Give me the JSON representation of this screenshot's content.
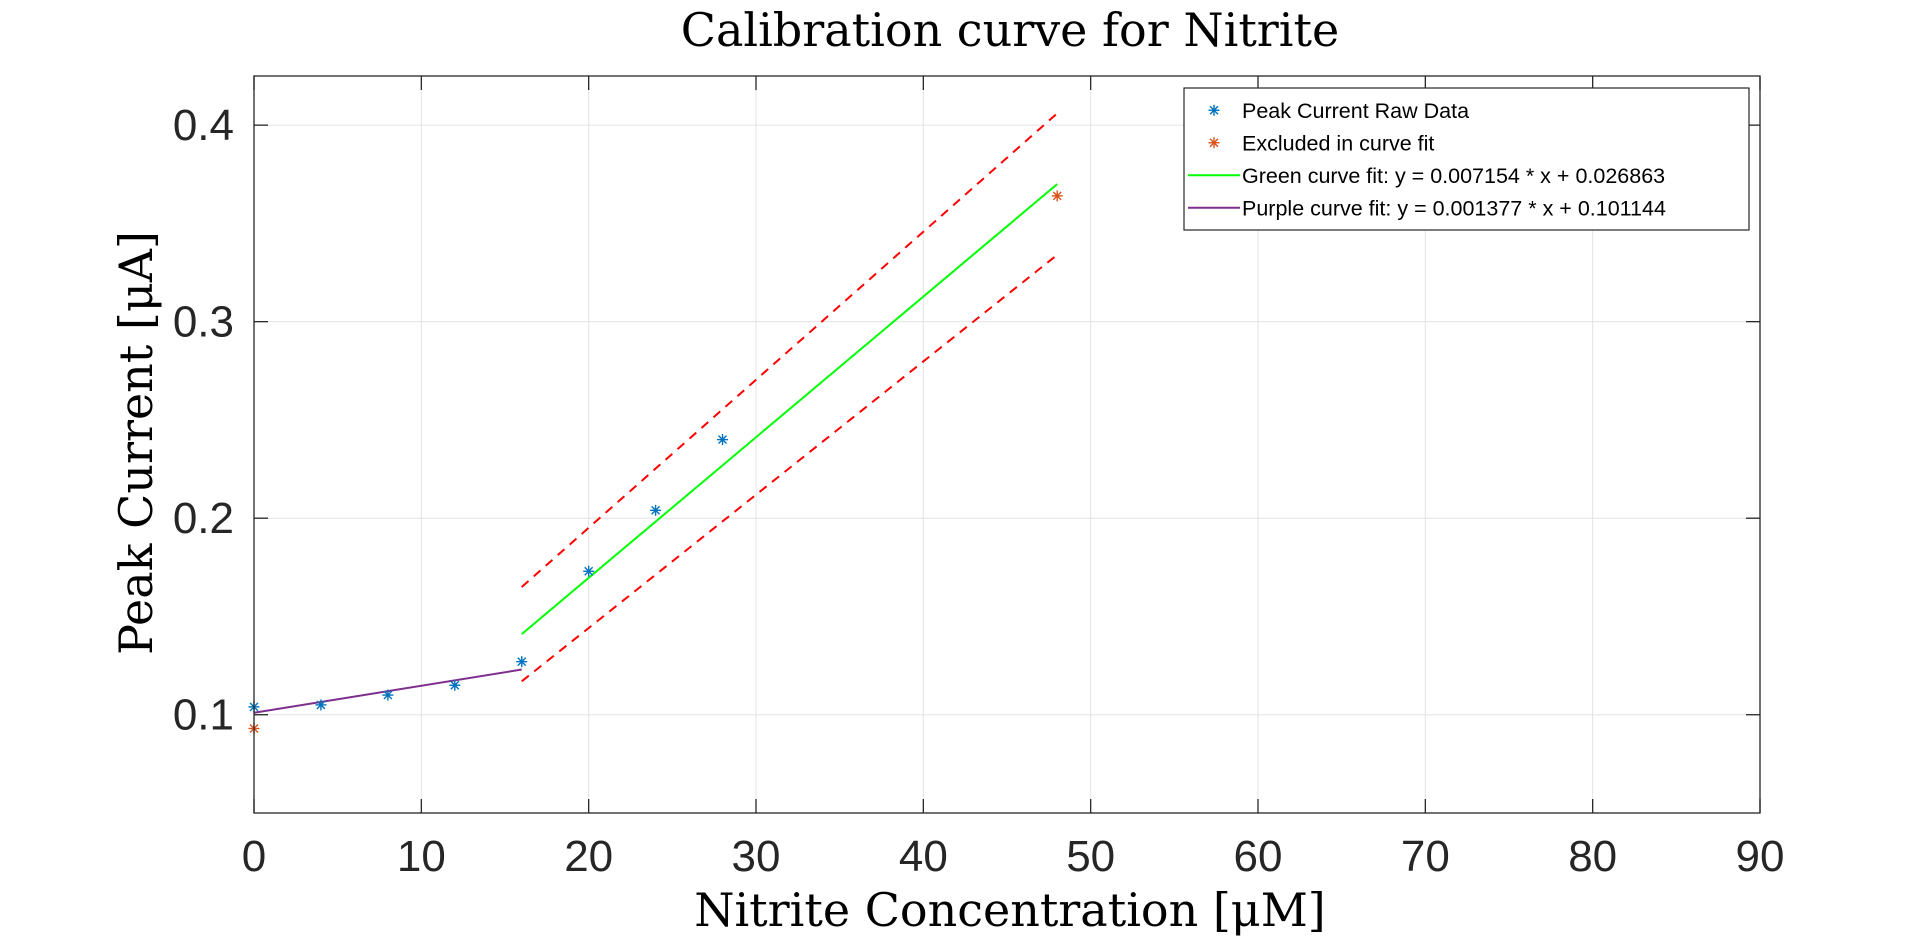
{
  "chart_data": {
    "type": "scatter",
    "title": "Calibration curve for Nitrite",
    "xlabel": "Nitrite Concentration [μM]",
    "ylabel": "Peak Current [μA]",
    "xlim": [
      0,
      90
    ],
    "ylim": [
      0.05,
      0.425
    ],
    "xticks": [
      0,
      10,
      20,
      30,
      40,
      50,
      60,
      70,
      80,
      90
    ],
    "yticks": [
      0.1,
      0.2,
      0.3,
      0.4
    ],
    "xtick_labels": [
      "0",
      "10",
      "20",
      "30",
      "40",
      "50",
      "60",
      "70",
      "80",
      "90"
    ],
    "ytick_labels": [
      "0.1",
      "0.2",
      "0.3",
      "0.4"
    ],
    "grid": true,
    "legend_position": "top-right",
    "series": [
      {
        "name": "Peak Current Raw Data",
        "kind": "marker",
        "marker": "asterisk",
        "color": "#0072BD",
        "x": [
          0,
          4,
          8,
          12,
          16,
          20,
          24,
          28
        ],
        "y": [
          0.104,
          0.105,
          0.11,
          0.115,
          0.127,
          0.173,
          0.204,
          0.24
        ]
      },
      {
        "name": "Excluded in curve fit",
        "kind": "marker",
        "marker": "asterisk",
        "color": "#D95319",
        "x": [
          0,
          48
        ],
        "y": [
          0.093,
          0.364
        ]
      },
      {
        "name": "Green curve fit: y = 0.007154 * x + 0.026863",
        "kind": "line",
        "color": "#00FF00",
        "x": [
          16,
          48
        ],
        "y": [
          0.141,
          0.37
        ]
      },
      {
        "name": "Purple curve fit: y = 0.001377 * x + 0.101144",
        "kind": "line",
        "color": "#7E2F8E",
        "x": [
          0,
          16
        ],
        "y": [
          0.101,
          0.123
        ]
      },
      {
        "kind": "dashed-line",
        "color": "#FF0000",
        "x": [
          16,
          48
        ],
        "y": [
          0.165,
          0.406
        ]
      },
      {
        "kind": "dashed-line",
        "color": "#FF0000",
        "x": [
          16,
          48
        ],
        "y": [
          0.117,
          0.334
        ]
      }
    ]
  }
}
